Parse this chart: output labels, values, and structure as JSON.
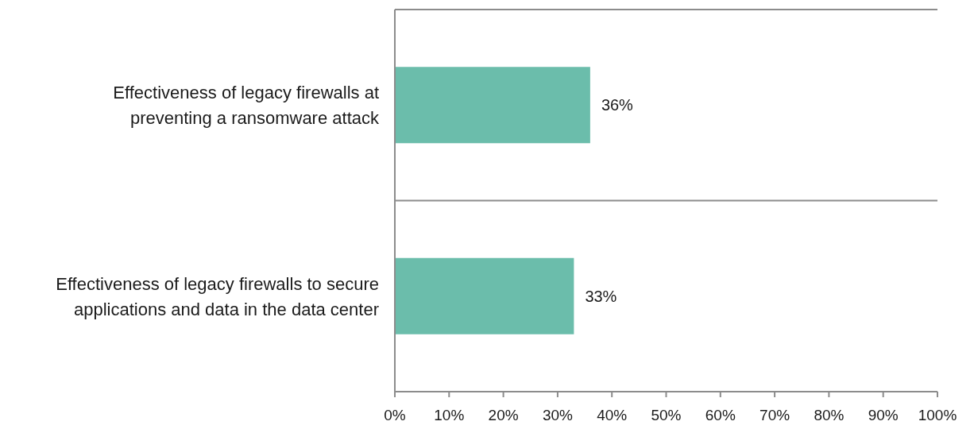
{
  "chart_data": {
    "type": "bar",
    "orientation": "horizontal",
    "categories": [
      "Effectiveness of legacy firewalls at preventing a ransomware attack",
      "Effectiveness of legacy firewalls to secure applications and data in the data center"
    ],
    "values": [
      36,
      33
    ],
    "color": "#6bbdab",
    "value_labels": [
      "36%",
      "33%"
    ],
    "xlim": [
      0,
      100
    ],
    "xticks": [
      {
        "value": 0,
        "label": "0%"
      },
      {
        "value": 10,
        "label": "10%"
      },
      {
        "value": 20,
        "label": "20%"
      },
      {
        "value": 30,
        "label": "30%"
      },
      {
        "value": 40,
        "label": "40%"
      },
      {
        "value": 50,
        "label": "50%"
      },
      {
        "value": 60,
        "label": "60%"
      },
      {
        "value": 70,
        "label": "70%"
      },
      {
        "value": 80,
        "label": "80%"
      },
      {
        "value": 90,
        "label": "90%"
      },
      {
        "value": 100,
        "label": "100%"
      }
    ],
    "grid": "y"
  }
}
